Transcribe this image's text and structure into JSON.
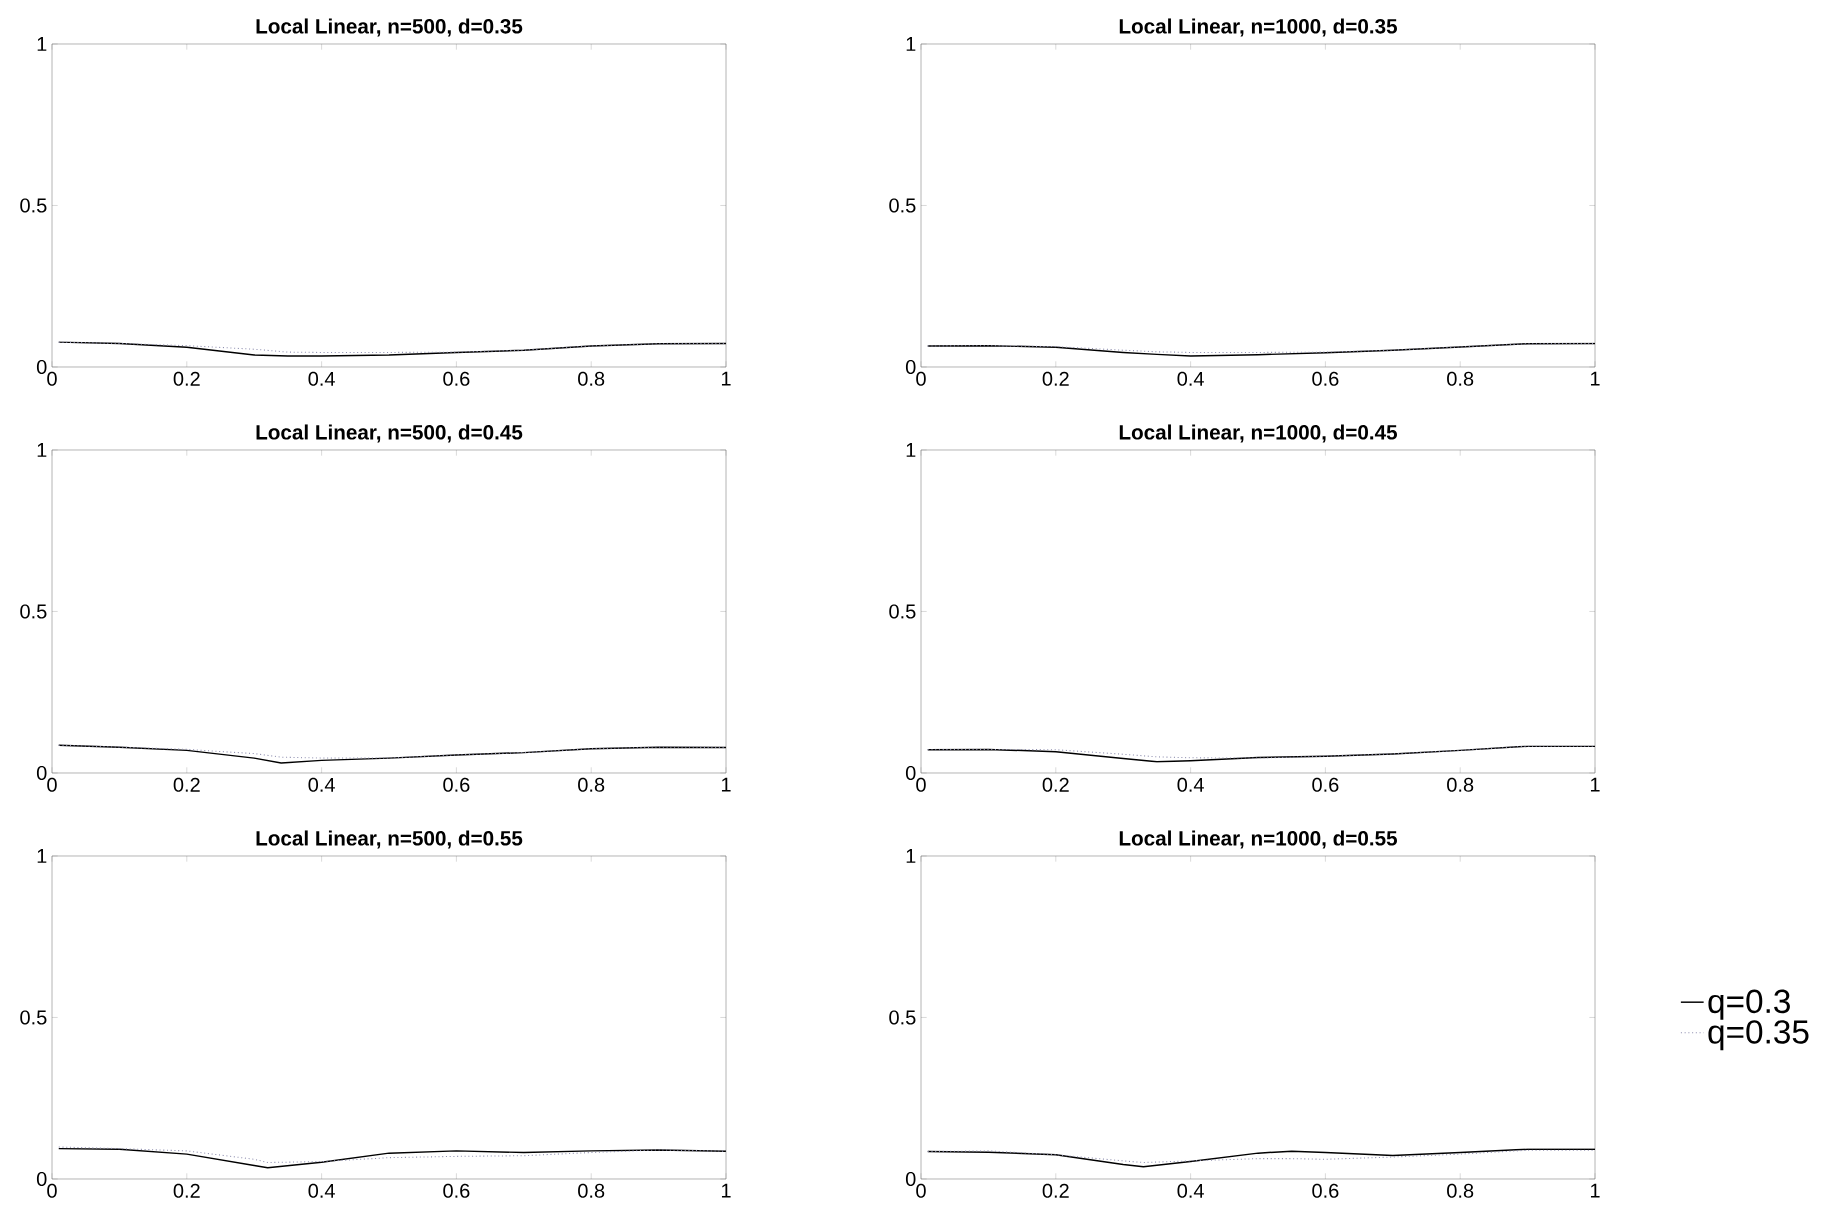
{
  "chart_data": [
    {
      "type": "line",
      "title": "Local Linear, n=500, d=0.35",
      "x": [
        0.01,
        0.1,
        0.2,
        0.3,
        0.35,
        0.4,
        0.5,
        0.6,
        0.7,
        0.8,
        0.9,
        1
      ],
      "xlim": [
        0,
        1
      ],
      "ylim": [
        0,
        1
      ],
      "xticks": [
        0,
        0.2,
        0.4,
        0.6,
        0.8,
        1
      ],
      "yticks": [
        0,
        0.5,
        1
      ],
      "grid": false,
      "legend": false,
      "marker": "none",
      "series": [
        {
          "color": "#000000",
          "line_style": "solid",
          "values": [
            0.077,
            0.073,
            0.061,
            0.037,
            0.034,
            0.034,
            0.037,
            0.045,
            0.052,
            0.065,
            0.072,
            0.073
          ]
        },
        {
          "color": "#9090b0",
          "line_style": "dotted",
          "values": [
            0.077,
            0.073,
            0.066,
            0.055,
            0.046,
            0.045,
            0.045,
            0.046,
            0.052,
            0.065,
            0.072,
            0.073
          ]
        }
      ]
    },
    {
      "type": "line",
      "title": "Local Linear, n=1000, d=0.35",
      "x": [
        0.01,
        0.1,
        0.2,
        0.3,
        0.35,
        0.4,
        0.5,
        0.6,
        0.7,
        0.8,
        0.9,
        1
      ],
      "xlim": [
        0,
        1
      ],
      "ylim": [
        0,
        1
      ],
      "xticks": [
        0,
        0.2,
        0.4,
        0.6,
        0.8,
        1
      ],
      "yticks": [
        0,
        0.5,
        1
      ],
      "grid": false,
      "legend": false,
      "marker": "none",
      "series": [
        {
          "color": "#000000",
          "line_style": "solid",
          "values": [
            0.065,
            0.066,
            0.061,
            0.045,
            0.039,
            0.034,
            0.038,
            0.044,
            0.052,
            0.062,
            0.072,
            0.073
          ]
        },
        {
          "color": "#9090b0",
          "line_style": "dotted",
          "values": [
            0.065,
            0.066,
            0.063,
            0.052,
            0.047,
            0.045,
            0.045,
            0.046,
            0.052,
            0.062,
            0.072,
            0.073
          ]
        }
      ]
    },
    {
      "type": "line",
      "title": "Local Linear, n=500, d=0.45",
      "x": [
        0.01,
        0.1,
        0.2,
        0.3,
        0.34,
        0.4,
        0.5,
        0.6,
        0.7,
        0.8,
        0.9,
        1
      ],
      "xlim": [
        0,
        1
      ],
      "ylim": [
        0,
        1
      ],
      "xticks": [
        0,
        0.2,
        0.4,
        0.6,
        0.8,
        1
      ],
      "yticks": [
        0,
        0.5,
        1
      ],
      "grid": false,
      "legend": false,
      "marker": "none",
      "series": [
        {
          "color": "#000000",
          "line_style": "solid",
          "values": [
            0.086,
            0.08,
            0.07,
            0.046,
            0.031,
            0.039,
            0.046,
            0.056,
            0.063,
            0.075,
            0.08,
            0.079
          ]
        },
        {
          "color": "#9090b0",
          "line_style": "dotted",
          "values": [
            0.086,
            0.08,
            0.073,
            0.06,
            0.049,
            0.046,
            0.046,
            0.056,
            0.063,
            0.075,
            0.08,
            0.079
          ]
        }
      ]
    },
    {
      "type": "line",
      "title": "Local Linear, n=1000, d=0.45",
      "x": [
        0.01,
        0.1,
        0.2,
        0.3,
        0.35,
        0.4,
        0.5,
        0.6,
        0.7,
        0.8,
        0.9,
        1
      ],
      "xlim": [
        0,
        1
      ],
      "ylim": [
        0,
        1
      ],
      "xticks": [
        0,
        0.2,
        0.4,
        0.6,
        0.8,
        1
      ],
      "yticks": [
        0,
        0.5,
        1
      ],
      "grid": false,
      "legend": false,
      "marker": "none",
      "series": [
        {
          "color": "#000000",
          "line_style": "solid",
          "values": [
            0.072,
            0.073,
            0.066,
            0.045,
            0.035,
            0.038,
            0.048,
            0.052,
            0.059,
            0.07,
            0.083,
            0.083
          ]
        },
        {
          "color": "#9090b0",
          "line_style": "dotted",
          "values": [
            0.072,
            0.073,
            0.072,
            0.058,
            0.05,
            0.047,
            0.046,
            0.052,
            0.059,
            0.07,
            0.083,
            0.083
          ]
        }
      ]
    },
    {
      "type": "line",
      "title": "Local Linear, n=500, d=0.55",
      "x": [
        0.01,
        0.1,
        0.2,
        0.3,
        0.32,
        0.4,
        0.5,
        0.6,
        0.7,
        0.8,
        0.9,
        1
      ],
      "xlim": [
        0,
        1
      ],
      "ylim": [
        0,
        1
      ],
      "xticks": [
        0,
        0.2,
        0.4,
        0.6,
        0.8,
        1
      ],
      "yticks": [
        0,
        0.5,
        1
      ],
      "grid": false,
      "legend": false,
      "marker": "none",
      "series": [
        {
          "color": "#000000",
          "line_style": "solid",
          "values": [
            0.094,
            0.092,
            0.077,
            0.042,
            0.035,
            0.052,
            0.08,
            0.087,
            0.082,
            0.087,
            0.09,
            0.086
          ]
        },
        {
          "color": "#9090b0",
          "line_style": "dotted",
          "values": [
            0.099,
            0.094,
            0.087,
            0.061,
            0.051,
            0.054,
            0.066,
            0.07,
            0.072,
            0.082,
            0.09,
            0.086
          ]
        }
      ]
    },
    {
      "type": "line",
      "title": "Local Linear, n=1000, d=0.55",
      "x": [
        0.01,
        0.1,
        0.2,
        0.3,
        0.33,
        0.4,
        0.5,
        0.55,
        0.6,
        0.7,
        0.8,
        0.9,
        1
      ],
      "xlim": [
        0,
        1
      ],
      "ylim": [
        0,
        1
      ],
      "xticks": [
        0,
        0.2,
        0.4,
        0.6,
        0.8,
        1
      ],
      "yticks": [
        0,
        0.5,
        1
      ],
      "grid": false,
      "legend": "right",
      "marker": "none",
      "series": [
        {
          "name": "q=0.3",
          "color": "#000000",
          "line_style": "solid",
          "values": [
            0.085,
            0.083,
            0.075,
            0.045,
            0.038,
            0.054,
            0.08,
            0.086,
            0.082,
            0.073,
            0.082,
            0.092,
            0.092
          ]
        },
        {
          "name": "q=0.35",
          "color": "#9090b0",
          "line_style": "dotted",
          "values": [
            0.085,
            0.087,
            0.075,
            0.056,
            0.051,
            0.056,
            0.063,
            0.063,
            0.061,
            0.068,
            0.077,
            0.089,
            0.089
          ]
        }
      ]
    }
  ]
}
